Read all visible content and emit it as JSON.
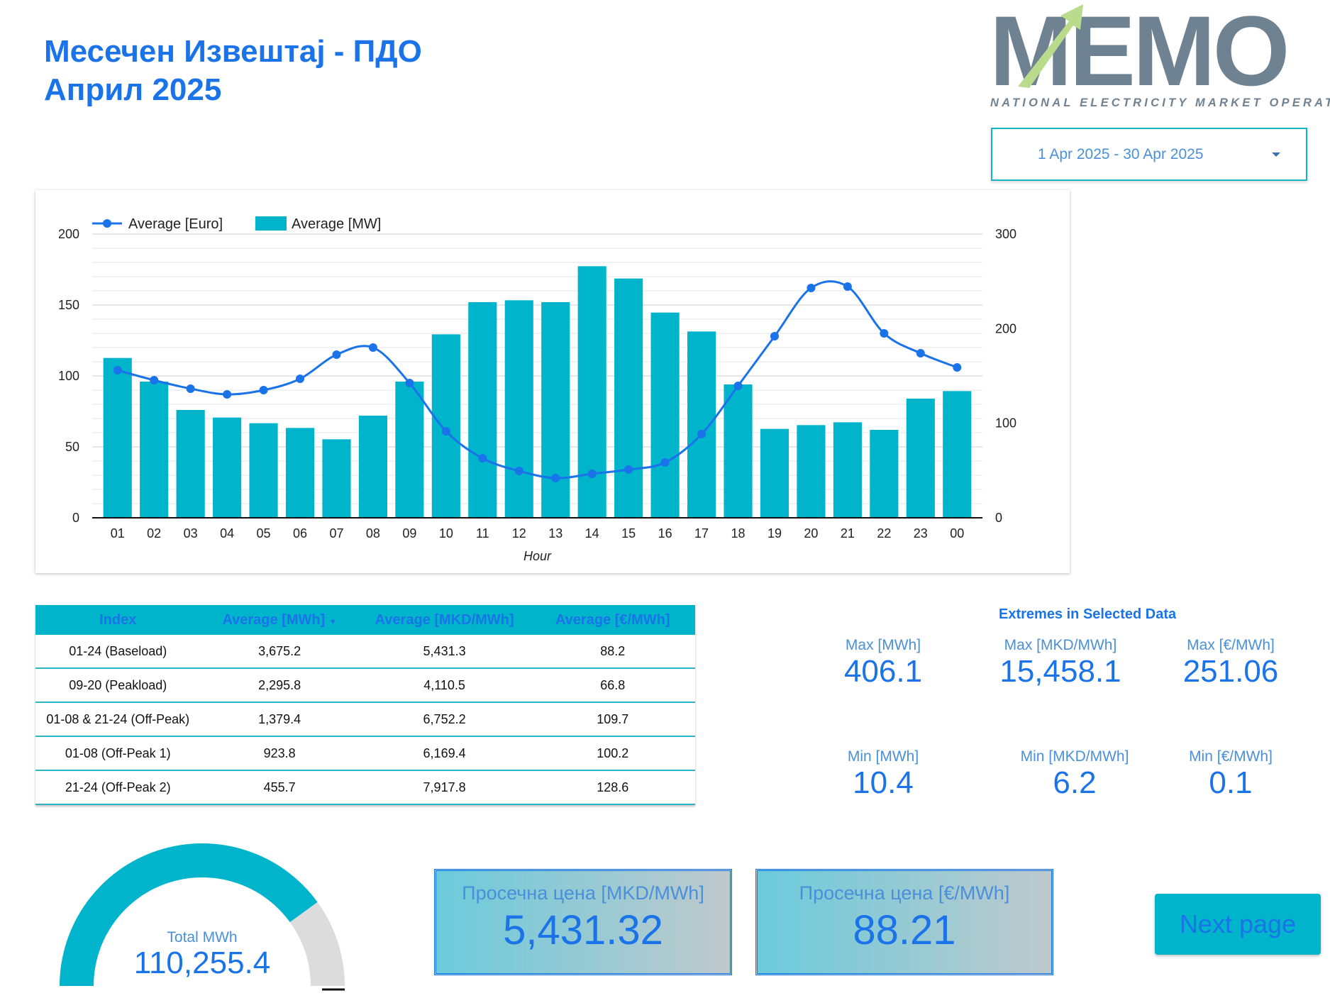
{
  "header": {
    "title_line1": "Месечен Извештај - ПДО",
    "title_line2": "Април 2025"
  },
  "logo": {
    "text": "MEMO",
    "subtitle": "NATIONAL ELECTRICITY MARKET OPERATOR"
  },
  "date_range": "1 Apr 2025 - 30 Apr 2025",
  "chart_data": {
    "type": "bar",
    "legend": [
      "Average [Euro]",
      "Average [MW]"
    ],
    "legend_position": "top-left",
    "xlabel": "Hour",
    "categories": [
      "01",
      "02",
      "03",
      "04",
      "05",
      "06",
      "07",
      "08",
      "09",
      "10",
      "11",
      "12",
      "13",
      "14",
      "15",
      "16",
      "17",
      "18",
      "19",
      "20",
      "21",
      "22",
      "23",
      "00"
    ],
    "series": [
      {
        "name": "Average [MW]",
        "kind": "bar",
        "axis": "right",
        "color": "#00b4cc",
        "values": [
          169,
          144,
          114,
          106,
          100,
          95,
          83,
          108,
          144,
          194,
          228,
          230,
          228,
          266,
          253,
          217,
          197,
          141,
          94,
          98,
          101,
          93,
          126,
          134
        ]
      },
      {
        "name": "Average [Euro]",
        "kind": "line",
        "axis": "left",
        "color": "#1a73e8",
        "values": [
          104,
          97,
          91,
          87,
          90,
          98,
          115,
          120,
          95,
          61,
          42,
          33,
          28,
          31,
          34,
          39,
          59,
          93,
          128,
          162,
          163,
          130,
          116,
          106
        ]
      }
    ],
    "y_left": {
      "min": 0,
      "max": 200,
      "ticks": [
        0,
        50,
        100,
        150,
        200
      ]
    },
    "y_right": {
      "min": 0,
      "max": 300,
      "ticks": [
        0,
        100,
        200,
        300
      ]
    },
    "grid": true
  },
  "table": {
    "headers": [
      "Index",
      "Average [MWh]",
      "Average [MKD/MWh]",
      "Average [€/MWh]"
    ],
    "rows": [
      [
        "01-24 (Baseload)",
        "3,675.2",
        "5,431.3",
        "88.2"
      ],
      [
        "09-20 (Peakload)",
        "2,295.8",
        "4,110.5",
        "66.8"
      ],
      [
        "01-08 & 21-24 (Off-Peak)",
        "1,379.4",
        "6,752.2",
        "109.7"
      ],
      [
        "01-08 (Off-Peak 1)",
        "923.8",
        "6,169.4",
        "100.2"
      ],
      [
        "21-24 (Off-Peak 2)",
        "455.7",
        "7,917.8",
        "128.6"
      ]
    ]
  },
  "extremes": {
    "title": "Extremes in Selected Data",
    "max_mwh_label": "Max [MWh]",
    "max_mwh": "406.1",
    "max_mkd_label": "Max [MKD/MWh]",
    "max_mkd": "15,458.1",
    "max_eur_label": "Max [€/MWh]",
    "max_eur": "251.06",
    "min_mwh_label": "Min [MWh]",
    "min_mwh": "10.4",
    "min_mkd_label": "Min [MKD/MWh]",
    "min_mkd": "6.2",
    "min_eur_label": "Min [€/MWh]",
    "min_eur": "0.1"
  },
  "gauge": {
    "label": "Total MWh",
    "value": "110,255.4",
    "fill_fraction": 0.8,
    "color": "#00b4cc"
  },
  "price_cards": [
    {
      "label": "Просечна цена [MKD/MWh]",
      "value": "5,431.32"
    },
    {
      "label": "Просечна цена [€/MWh]",
      "value": "88.21"
    }
  ],
  "next_button": "Next page"
}
